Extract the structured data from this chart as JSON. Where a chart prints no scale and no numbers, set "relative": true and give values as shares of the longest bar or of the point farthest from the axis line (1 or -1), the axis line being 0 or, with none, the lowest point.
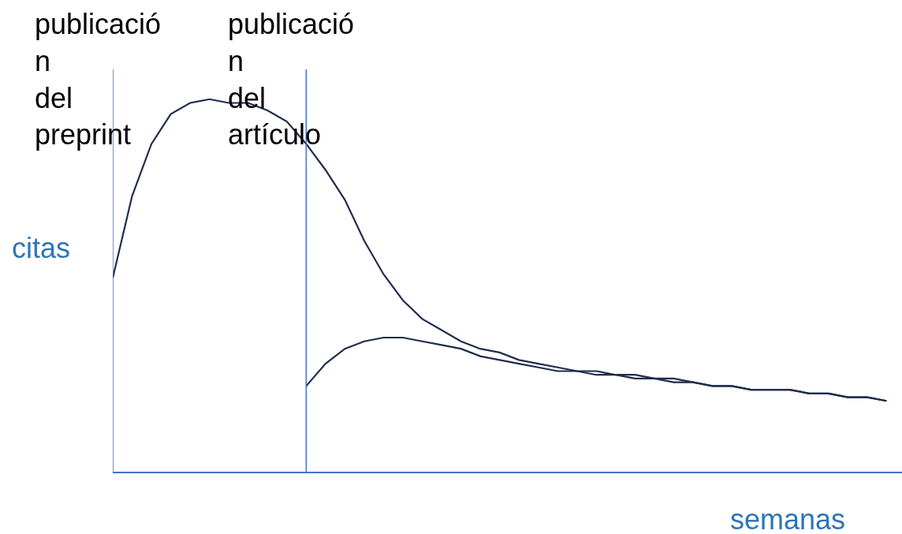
{
  "chart_data": {
    "type": "line",
    "relative": true,
    "xlabel": "semanas",
    "ylabel": "citas",
    "categories": [
      null,
      null,
      null,
      null,
      null,
      null,
      null,
      null,
      null,
      null,
      null,
      null,
      null,
      null,
      null,
      null,
      null,
      null,
      null,
      null,
      null,
      null,
      null,
      null,
      null,
      null,
      null,
      null,
      null,
      null,
      null,
      null,
      null,
      null,
      null,
      null,
      null,
      null,
      null,
      null,
      null
    ],
    "series": [
      {
        "color": "#1f2d4e",
        "values": [
          0.52,
          0.74,
          0.88,
          0.96,
          0.99,
          1.0,
          0.99,
          0.99,
          0.97,
          0.94,
          0.88,
          0.81,
          0.73,
          0.62,
          0.53,
          0.46,
          0.41,
          0.38,
          0.35,
          0.33,
          0.32,
          0.3,
          0.29,
          0.28,
          0.27,
          0.27,
          0.26,
          0.26,
          0.25,
          0.25,
          0.24,
          0.23,
          0.23,
          0.22,
          0.22,
          0.22,
          0.21,
          0.21,
          0.2,
          0.2,
          0.19
        ]
      },
      {
        "color": "#1f2d4e",
        "values": [
          null,
          null,
          null,
          null,
          null,
          null,
          null,
          null,
          null,
          null,
          0.23,
          0.29,
          0.33,
          0.35,
          0.36,
          0.36,
          0.35,
          0.34,
          0.33,
          0.31,
          0.3,
          0.29,
          0.28,
          0.27,
          0.27,
          0.26,
          0.26,
          0.25,
          0.25,
          0.24,
          0.24,
          0.23,
          0.23,
          0.22,
          0.22,
          0.22,
          0.21,
          0.21,
          0.2,
          0.2,
          0.19
        ]
      }
    ],
    "annotations": [
      "publicació\nn\ndel\npreprint",
      "publicació\nn\ndel\nartículo"
    ],
    "marker": "none",
    "line_style": "solid"
  }
}
